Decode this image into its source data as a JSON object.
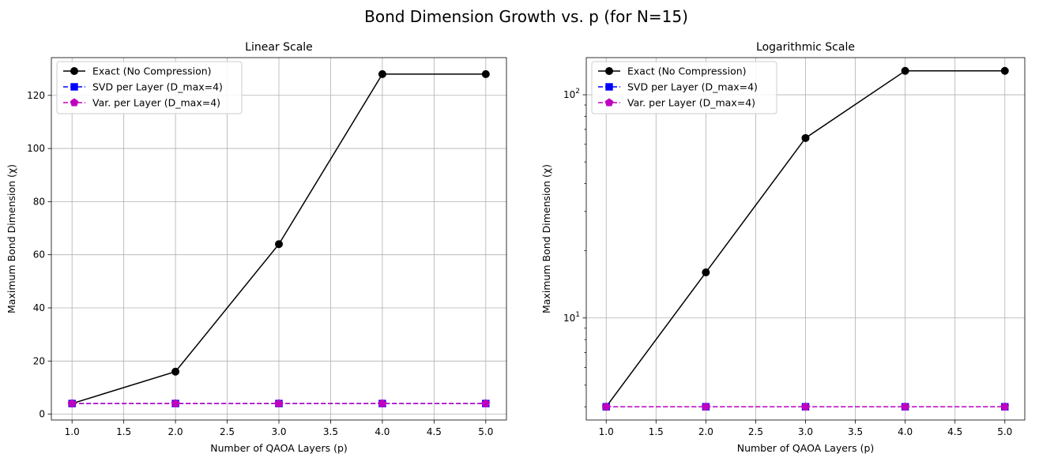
{
  "figure": {
    "title": "Bond Dimension Growth vs. p (for N=15)"
  },
  "chart_data": [
    {
      "type": "line",
      "title": "Linear Scale",
      "xlabel": "Number of QAOA Layers (p)",
      "ylabel": "Maximum Bond Dimension (χ)",
      "yscale": "linear",
      "xlim": [
        0.8,
        5.2
      ],
      "ylim": [
        -2.2,
        134.2
      ],
      "xticks": [
        "1.0",
        "1.5",
        "2.0",
        "2.5",
        "3.0",
        "3.5",
        "4.0",
        "4.5",
        "5.0"
      ],
      "xtick_values": [
        1.0,
        1.5,
        2.0,
        2.5,
        3.0,
        3.5,
        4.0,
        4.5,
        5.0
      ],
      "yticks": [
        "0",
        "20",
        "40",
        "60",
        "80",
        "100",
        "120"
      ],
      "ytick_values": [
        0,
        20,
        40,
        60,
        80,
        100,
        120
      ],
      "grid": true,
      "legend_position": "top-left",
      "x": [
        1,
        2,
        3,
        4,
        5
      ],
      "series": [
        {
          "name": "Exact (No Compression)",
          "values": [
            4,
            16,
            64,
            128,
            128
          ],
          "color": "#000000",
          "linestyle": "solid",
          "marker": "circle"
        },
        {
          "name": "SVD per Layer (D_max=4)",
          "values": [
            4,
            4,
            4,
            4,
            4
          ],
          "color": "#0000ff",
          "linestyle": "dashed",
          "marker": "square"
        },
        {
          "name": "Var. per Layer (D_max=4)",
          "values": [
            4,
            4,
            4,
            4,
            4
          ],
          "color": "#bf00bf",
          "linestyle": "dashed",
          "marker": "pentagon"
        }
      ]
    },
    {
      "type": "line",
      "title": "Logarithmic Scale",
      "xlabel": "Number of QAOA Layers (p)",
      "ylabel": "Maximum Bond Dimension (χ)",
      "yscale": "log",
      "xlim": [
        0.8,
        5.2
      ],
      "ylim": [
        3.49,
        146.7
      ],
      "xticks": [
        "1.0",
        "1.5",
        "2.0",
        "2.5",
        "3.0",
        "3.5",
        "4.0",
        "4.5",
        "5.0"
      ],
      "xtick_values": [
        1.0,
        1.5,
        2.0,
        2.5,
        3.0,
        3.5,
        4.0,
        4.5,
        5.0
      ],
      "yticks": [
        {
          "base": "10",
          "exp": "1",
          "value": 10
        },
        {
          "base": "10",
          "exp": "2",
          "value": 100
        }
      ],
      "grid": true,
      "legend_position": "top-left",
      "x": [
        1,
        2,
        3,
        4,
        5
      ],
      "series": [
        {
          "name": "Exact (No Compression)",
          "values": [
            4,
            16,
            64,
            128,
            128
          ],
          "color": "#000000",
          "linestyle": "solid",
          "marker": "circle"
        },
        {
          "name": "SVD per Layer (D_max=4)",
          "values": [
            4,
            4,
            4,
            4,
            4
          ],
          "color": "#0000ff",
          "linestyle": "dashed",
          "marker": "square"
        },
        {
          "name": "Var. per Layer (D_max=4)",
          "values": [
            4,
            4,
            4,
            4,
            4
          ],
          "color": "#bf00bf",
          "linestyle": "dashed",
          "marker": "pentagon"
        }
      ]
    }
  ]
}
